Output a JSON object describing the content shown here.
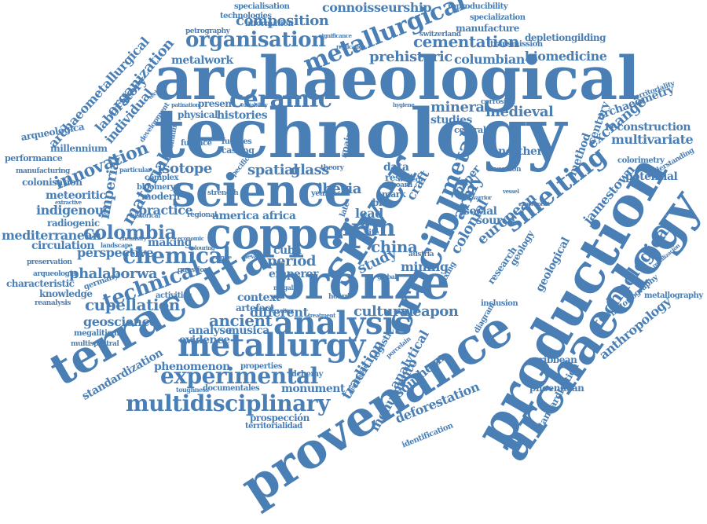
{
  "word_cloud": {
    "color": "#4a7fb5",
    "words": [
      "archaeological",
      "technology",
      "science",
      "provenance",
      "production",
      "archaeology",
      "bronze",
      "copper",
      "terracotta",
      "silver",
      "metallurgy",
      "analysis",
      "crucible",
      "experimental",
      "multidisciplinary",
      "metallurgical",
      "ceramic",
      "organisation",
      "chemical",
      "colombia",
      "iron",
      "smelting",
      "composition",
      "connoisseurship",
      "technical",
      "innovation",
      "cementation",
      "technological",
      "metal",
      "army",
      "colonial",
      "european",
      "ancient",
      "cupellation",
      "isotope",
      "spatial",
      "glass",
      "iberia",
      "craft",
      "mineral",
      "medieval",
      "studies",
      "exchange",
      "reconstruction",
      "multivariate",
      "jamestown",
      "tradition",
      "monumento",
      "analytical",
      "deforestation",
      "southern",
      "weapon",
      "cultural",
      "mining",
      "period",
      "emperor",
      "different",
      "lead",
      "china",
      "study",
      "context",
      "artefact",
      "evidence",
      "musica",
      "analyse",
      "phenomenon",
      "monument",
      "alchemy",
      "standardization",
      "geoscience",
      "phalaborwa",
      "perspective",
      "mediterranean",
      "indigenous",
      "meteoritic",
      "colonisation",
      "radiogenic",
      "circulation",
      "knowledge",
      "characteristic",
      "millennium",
      "organization",
      "laboratory",
      "individual",
      "archaeometallurgical",
      "arqueológica",
      "performance",
      "manufacturing",
      "preservation",
      "reanalysis",
      "imperial",
      "material",
      "metalwork",
      "prehistoric",
      "columbian",
      "biomedicine",
      "information",
      "technologies",
      "specialisation",
      "reproducibility",
      "specialization",
      "manufacture",
      "depletiongilding",
      "transmission",
      "switzerland",
      "petrography",
      "significance",
      "replication",
      "histories",
      "physical",
      "present",
      "furnace",
      "casting",
      "fuentes",
      "chromium",
      "development",
      "practice",
      "america",
      "africa",
      "making",
      "cuba",
      "levant",
      "germany",
      "activities",
      "question",
      "archaeometry",
      "territoriality",
      "method",
      "century",
      "northern",
      "colorimetry",
      "potential",
      "understanding",
      "geological",
      "research",
      "geology",
      "source",
      "social",
      "anthropology",
      "historiography",
      "metallography",
      "caribbean",
      "phoenician",
      "diagram",
      "inclusion",
      "standardisation",
      "identification",
      "prospección",
      "territorialidad",
      "documentales",
      "toughness",
      "properties",
      "megalitismo",
      "multispectral",
      "arqueología",
      "spain",
      "data",
      "result",
      "board",
      "western",
      "paper",
      "bras",
      "mark",
      "year",
      "life",
      "late",
      "invention",
      "corrosion",
      "central",
      "complex",
      "bloomery",
      "modern",
      "extractive",
      "historical",
      "economic",
      "regional",
      "strength",
      "patination",
      "variability",
      "technique",
      "landscape",
      "chemistry",
      "colouring",
      "hygiene",
      "mixing",
      "austria",
      "hoard",
      "logistic",
      "distillation",
      "porcelain",
      "recycling",
      "theory",
      "specific",
      "particular",
      "reutilización",
      "warrior",
      "vessel",
      "experiment",
      "megalith",
      "empire",
      "global",
      "treatment"
    ]
  }
}
